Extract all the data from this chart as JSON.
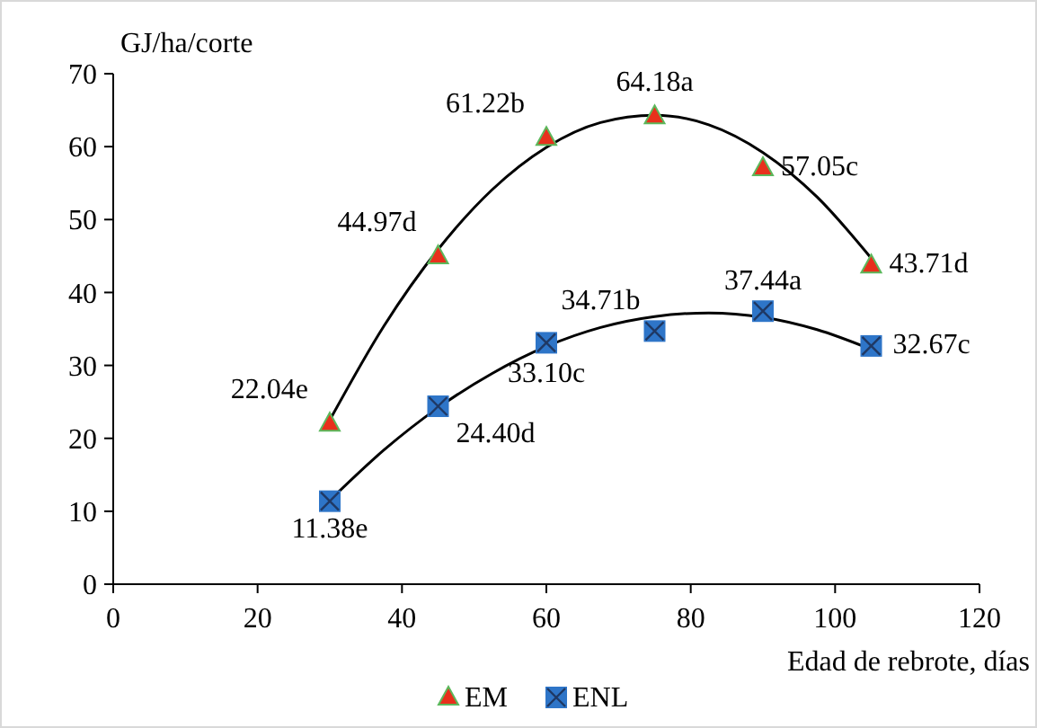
{
  "chart_data": {
    "type": "scatter",
    "xlabel": "Edad de rebrote, días",
    "ylabel": "GJ/ha/corte",
    "xlim": [
      0,
      120
    ],
    "xticks": [
      0,
      20,
      40,
      60,
      80,
      100,
      120
    ],
    "ylim": [
      0,
      70
    ],
    "yticks": [
      0,
      10,
      20,
      30,
      40,
      50,
      60,
      70
    ],
    "grid": false,
    "legend": "bottom",
    "series": [
      {
        "name": "EM",
        "marker": "triangle",
        "color": "#e8301c",
        "x": [
          30,
          45,
          60,
          75,
          90,
          105
        ],
        "values": [
          22.04,
          44.97,
          61.22,
          64.18,
          57.05,
          43.71
        ],
        "value_labels": [
          "22.04e",
          "44.97d",
          "61.22b",
          "64.18a",
          "57.05c",
          "43.71d"
        ]
      },
      {
        "name": "ENL",
        "marker": "square",
        "color": "#2e75c8",
        "x": [
          30,
          45,
          60,
          75,
          90,
          105
        ],
        "values": [
          11.38,
          24.4,
          33.1,
          34.71,
          37.44,
          32.67
        ],
        "value_labels": [
          "11.38e",
          "24.40d",
          "33.10c",
          "34.71b",
          "37.44a",
          "32.67c"
        ]
      },
      {
        "type": "line",
        "marker": "none",
        "color": "#000000",
        "x": [
          30,
          37.5,
          45,
          52.5,
          60,
          67.5,
          75,
          82.5,
          90,
          97.5,
          105
        ],
        "values": [
          22.5,
          35.4,
          45.9,
          54.1,
          59.9,
          63.3,
          64.3,
          63.0,
          59.2,
          53.1,
          44.7
        ]
      },
      {
        "type": "line",
        "marker": "none",
        "color": "#000000",
        "x": [
          30,
          37.5,
          45,
          52.5,
          60,
          67.5,
          75,
          82.5,
          90,
          97.5,
          105
        ],
        "values": [
          11.5,
          18.4,
          24.2,
          28.9,
          32.6,
          35.2,
          36.7,
          37.2,
          36.6,
          34.9,
          32.2
        ]
      }
    ]
  }
}
